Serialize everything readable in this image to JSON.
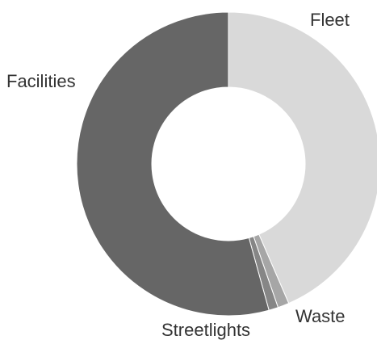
{
  "chart_data": {
    "type": "pie",
    "donut": true,
    "legend": "none",
    "categories": [
      "Fleet",
      "Waste",
      "Streetlights",
      "Facilities"
    ],
    "values": [
      43.5,
      1.2,
      1.0,
      54.3
    ],
    "colors": [
      "#d9d9d9",
      "#a6a6a6",
      "#868686",
      "#666666"
    ]
  }
}
